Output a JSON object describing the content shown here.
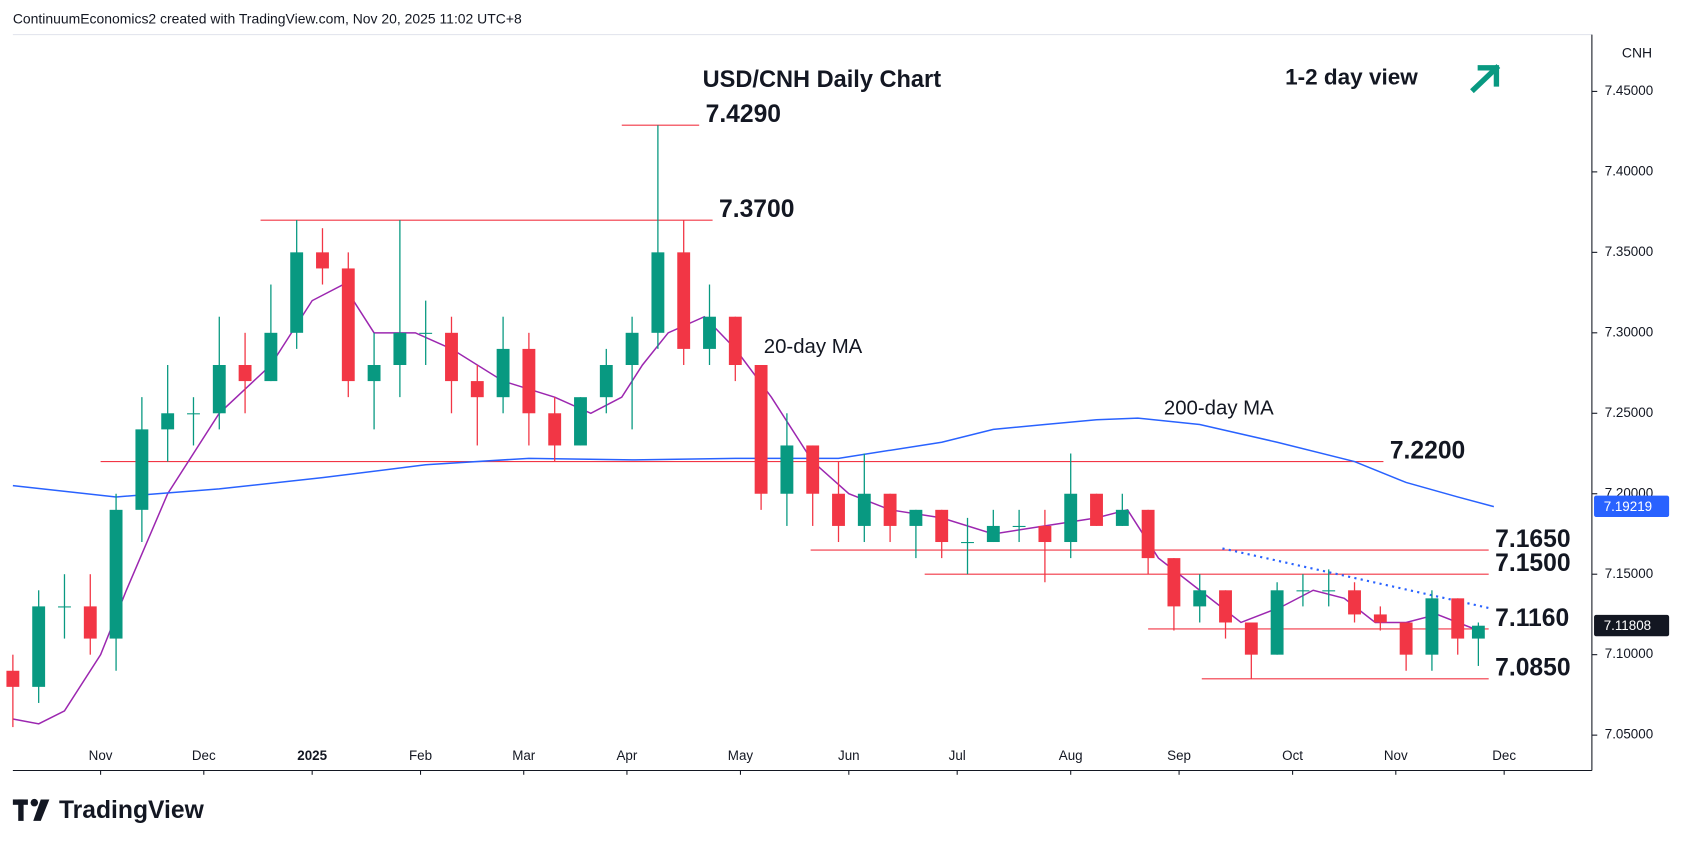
{
  "header": "ContinuumEconomics2 created with TradingView.com, Nov 20, 2025 11:02 UTC+8",
  "brand": "TradingView",
  "chart_data": {
    "type": "candlestick",
    "title": "USD/CNH Daily Chart",
    "annotation": "1-2 day view",
    "currency": "CNH",
    "xlim": [
      0,
      306
    ],
    "xticks": [
      {
        "value": 17,
        "label": "Nov"
      },
      {
        "value": 37,
        "label": "Dec"
      },
      {
        "value": 58,
        "label": "2025"
      },
      {
        "value": 79,
        "label": "Feb"
      },
      {
        "value": 99,
        "label": "Mar"
      },
      {
        "value": 119,
        "label": "Apr"
      },
      {
        "value": 141,
        "label": "May"
      },
      {
        "value": 162,
        "label": "Jun"
      },
      {
        "value": 183,
        "label": "Jul"
      },
      {
        "value": 205,
        "label": "Aug"
      },
      {
        "value": 226,
        "label": "Sep"
      },
      {
        "value": 248,
        "label": "Oct"
      },
      {
        "value": 268,
        "label": "Nov"
      },
      {
        "value": 289,
        "label": "Dec"
      }
    ],
    "ylim": [
      7.0467,
      7.4853
    ],
    "yticks": [
      {
        "value": 7.05,
        "label": "7.05000"
      },
      {
        "value": 7.1,
        "label": "7.10000"
      },
      {
        "value": 7.15,
        "label": "7.15000"
      },
      {
        "value": 7.2,
        "label": "7.20000"
      },
      {
        "value": 7.25,
        "label": "7.25000"
      },
      {
        "value": 7.3,
        "label": "7.30000"
      },
      {
        "value": 7.35,
        "label": "7.35000"
      },
      {
        "value": 7.4,
        "label": "7.40000"
      },
      {
        "value": 7.45,
        "label": "7.45000"
      }
    ],
    "up_color": "#089981",
    "down_color": "#f23645",
    "candles": {
      "x": [
        0,
        5,
        10,
        15,
        20,
        25,
        30,
        35,
        40,
        45,
        50,
        55,
        60,
        65,
        70,
        75,
        80,
        85,
        90,
        95,
        100,
        105,
        110,
        115,
        120,
        125,
        130,
        135,
        140,
        145,
        150,
        155,
        160,
        165,
        170,
        175,
        180,
        185,
        190,
        195,
        200,
        205,
        210,
        215,
        220,
        225,
        230,
        235,
        240,
        245,
        250,
        255,
        260,
        265,
        270,
        275,
        280,
        284
      ],
      "open": [
        7.09,
        7.08,
        7.13,
        7.13,
        7.11,
        7.19,
        7.24,
        7.25,
        7.25,
        7.28,
        7.27,
        7.3,
        7.35,
        7.34,
        7.27,
        7.28,
        7.3,
        7.3,
        7.27,
        7.26,
        7.29,
        7.25,
        7.23,
        7.26,
        7.28,
        7.3,
        7.35,
        7.29,
        7.31,
        7.28,
        7.2,
        7.23,
        7.2,
        7.18,
        7.2,
        7.18,
        7.19,
        7.17,
        7.17,
        7.18,
        7.18,
        7.17,
        7.2,
        7.18,
        7.19,
        7.16,
        7.13,
        7.14,
        7.12,
        7.1,
        7.14,
        7.14,
        7.14,
        7.125,
        7.12,
        7.1,
        7.135,
        7.11
      ],
      "high": [
        7.1,
        7.14,
        7.15,
        7.15,
        7.2,
        7.26,
        7.28,
        7.26,
        7.31,
        7.3,
        7.33,
        7.37,
        7.365,
        7.35,
        7.3,
        7.37,
        7.32,
        7.31,
        7.28,
        7.31,
        7.3,
        7.26,
        7.26,
        7.29,
        7.31,
        7.429,
        7.37,
        7.33,
        7.31,
        7.28,
        7.25,
        7.23,
        7.22,
        7.225,
        7.2,
        7.19,
        7.19,
        7.185,
        7.19,
        7.19,
        7.19,
        7.225,
        7.2,
        7.2,
        7.19,
        7.16,
        7.15,
        7.14,
        7.12,
        7.145,
        7.15,
        7.153,
        7.145,
        7.13,
        7.12,
        7.14,
        7.135,
        7.12
      ],
      "low": [
        7.055,
        7.07,
        7.11,
        7.1,
        7.09,
        7.17,
        7.22,
        7.23,
        7.24,
        7.25,
        7.27,
        7.29,
        7.33,
        7.26,
        7.24,
        7.26,
        7.28,
        7.25,
        7.23,
        7.25,
        7.23,
        7.22,
        7.23,
        7.25,
        7.24,
        7.29,
        7.28,
        7.28,
        7.27,
        7.19,
        7.18,
        7.18,
        7.17,
        7.17,
        7.17,
        7.16,
        7.16,
        7.15,
        7.17,
        7.17,
        7.145,
        7.16,
        7.18,
        7.18,
        7.15,
        7.115,
        7.12,
        7.11,
        7.085,
        7.1,
        7.13,
        7.13,
        7.12,
        7.115,
        7.09,
        7.09,
        7.1,
        7.093
      ],
      "close": [
        7.08,
        7.13,
        7.13,
        7.11,
        7.19,
        7.24,
        7.25,
        7.25,
        7.28,
        7.27,
        7.3,
        7.35,
        7.34,
        7.27,
        7.28,
        7.3,
        7.3,
        7.27,
        7.26,
        7.29,
        7.25,
        7.23,
        7.26,
        7.28,
        7.3,
        7.35,
        7.29,
        7.31,
        7.28,
        7.2,
        7.23,
        7.2,
        7.18,
        7.2,
        7.18,
        7.19,
        7.17,
        7.17,
        7.18,
        7.18,
        7.17,
        7.2,
        7.18,
        7.19,
        7.16,
        7.13,
        7.14,
        7.12,
        7.1,
        7.14,
        7.14,
        7.14,
        7.125,
        7.12,
        7.1,
        7.135,
        7.11,
        7.118
      ]
    },
    "series": [
      {
        "name": "20-day MA",
        "color": "#9c27b0",
        "x": [
          0,
          5,
          10,
          17,
          22,
          30,
          40,
          50,
          58,
          64,
          70,
          78,
          85,
          95,
          105,
          112,
          118,
          122,
          127,
          134,
          140,
          147,
          155,
          162,
          170,
          180,
          190,
          200,
          210,
          216,
          222,
          230,
          238,
          246,
          252,
          258,
          264,
          270,
          276,
          284
        ],
        "values": [
          7.06,
          7.057,
          7.065,
          7.1,
          7.14,
          7.2,
          7.25,
          7.28,
          7.32,
          7.33,
          7.3,
          7.3,
          7.29,
          7.27,
          7.26,
          7.25,
          7.26,
          7.28,
          7.3,
          7.31,
          7.29,
          7.26,
          7.22,
          7.2,
          7.19,
          7.185,
          7.175,
          7.18,
          7.185,
          7.19,
          7.16,
          7.14,
          7.12,
          7.13,
          7.14,
          7.135,
          7.12,
          7.12,
          7.125,
          7.115
        ]
      },
      {
        "name": "200-day MA",
        "color": "#2962ff",
        "x": [
          0,
          20,
          40,
          60,
          80,
          100,
          120,
          140,
          160,
          180,
          190,
          200,
          210,
          218,
          230,
          245,
          260,
          270,
          280,
          287
        ],
        "values": [
          7.205,
          7.198,
          7.203,
          7.21,
          7.218,
          7.222,
          7.221,
          7.222,
          7.222,
          7.232,
          7.24,
          7.243,
          7.246,
          7.247,
          7.243,
          7.232,
          7.22,
          7.207,
          7.198,
          7.192
        ]
      }
    ],
    "last_price": 7.11808,
    "ma200_last": 7.19219,
    "level_color": "#f23645",
    "levels": [
      {
        "value": 7.429,
        "label": "7.4290",
        "x": [
          118,
          133
        ]
      },
      {
        "value": 7.37,
        "label": "7.3700",
        "x": [
          48,
          135.6
        ]
      },
      {
        "value": 7.22,
        "label": "7.2200",
        "x": [
          17,
          265.6
        ]
      },
      {
        "value": 7.165,
        "label": "7.1650",
        "x": [
          154.6,
          286
        ]
      },
      {
        "value": 7.15,
        "label": "7.1500",
        "x": [
          176.7,
          286
        ]
      },
      {
        "value": 7.116,
        "label": "7.1160",
        "x": [
          220,
          286
        ]
      },
      {
        "value": 7.085,
        "label": "7.0850",
        "x": [
          230.4,
          286
        ]
      }
    ],
    "trendline": {
      "x": [
        234.4,
        286
      ],
      "values": [
        7.166,
        7.129
      ],
      "color": "#2962ff"
    }
  }
}
